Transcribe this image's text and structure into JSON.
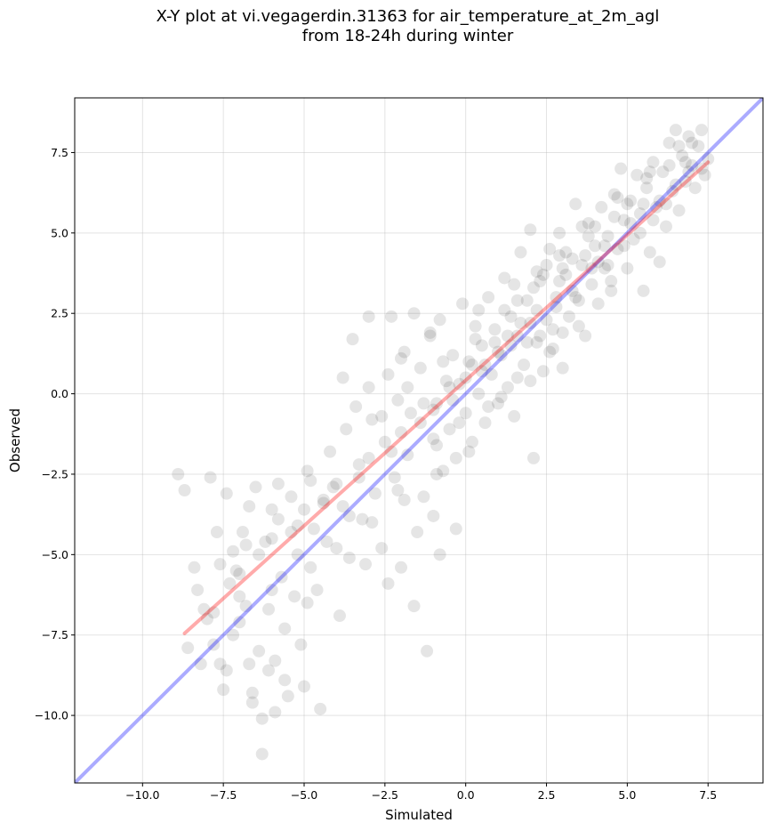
{
  "title_line1": "X-Y plot at vi.vegagerdin.31363 for air_temperature_at_2m_agl",
  "title_line2": "from 18-24h during winter",
  "chart_data": {
    "type": "scatter",
    "title": "X-Y plot at vi.vegagerdin.31363 for air_temperature_at_2m_agl from 18-24h during winter",
    "xlabel": "Simulated",
    "ylabel": "Observed",
    "xlim": [
      -12.1,
      9.2
    ],
    "ylim": [
      -12.1,
      9.2
    ],
    "xticks": [
      -10.0,
      -7.5,
      -5.0,
      -2.5,
      0.0,
      2.5,
      5.0,
      7.5
    ],
    "yticks": [
      -10.0,
      -7.5,
      -5.0,
      -2.5,
      0.0,
      2.5,
      5.0,
      7.5
    ],
    "xtick_labels": [
      "−10.0",
      "−7.5",
      "−5.0",
      "−2.5",
      "0.0",
      "2.5",
      "5.0",
      "7.5"
    ],
    "ytick_labels": [
      "−10.0",
      "−7.5",
      "−5.0",
      "−2.5",
      "0.0",
      "2.5",
      "5.0",
      "7.5"
    ],
    "grid": true,
    "point_color": "#000000",
    "point_alpha": 0.1,
    "points": [
      [
        -8.9,
        -2.5
      ],
      [
        -8.7,
        -3.0
      ],
      [
        -8.4,
        -5.4
      ],
      [
        -8.3,
        -6.1
      ],
      [
        -8.0,
        -7.0
      ],
      [
        -7.8,
        -6.8
      ],
      [
        -7.9,
        -2.6
      ],
      [
        -7.7,
        -4.3
      ],
      [
        -7.6,
        -8.4
      ],
      [
        -7.5,
        -9.2
      ],
      [
        -7.4,
        -3.1
      ],
      [
        -7.2,
        -4.9
      ],
      [
        -7.1,
        -5.5
      ],
      [
        -7.0,
        -7.1
      ],
      [
        -6.9,
        -4.3
      ],
      [
        -6.8,
        -6.6
      ],
      [
        -6.7,
        -3.5
      ],
      [
        -6.6,
        -9.6
      ],
      [
        -6.5,
        -2.9
      ],
      [
        -6.4,
        -8.0
      ],
      [
        -6.3,
        -10.1
      ],
      [
        -6.3,
        -11.2
      ],
      [
        -6.2,
        -4.6
      ],
      [
        -6.1,
        -6.7
      ],
      [
        -6.0,
        -3.6
      ],
      [
        -5.9,
        -8.3
      ],
      [
        -5.8,
        -2.8
      ],
      [
        -5.7,
        -5.7
      ],
      [
        -5.6,
        -7.3
      ],
      [
        -5.5,
        -9.4
      ],
      [
        -5.4,
        -3.2
      ],
      [
        -5.3,
        -6.3
      ],
      [
        -5.2,
        -4.1
      ],
      [
        -5.1,
        -7.8
      ],
      [
        -5.0,
        -9.1
      ],
      [
        -4.9,
        -2.4
      ],
      [
        -4.8,
        -5.4
      ],
      [
        -4.7,
        -4.2
      ],
      [
        -4.6,
        -6.1
      ],
      [
        -4.5,
        -9.8
      ],
      [
        -4.4,
        -3.3
      ],
      [
        -4.2,
        -1.8
      ],
      [
        -4.1,
        -2.9
      ],
      [
        -4.0,
        -4.8
      ],
      [
        -3.9,
        -6.9
      ],
      [
        -3.8,
        0.5
      ],
      [
        -3.7,
        -1.1
      ],
      [
        -3.6,
        -3.8
      ],
      [
        -3.5,
        1.7
      ],
      [
        -3.4,
        -0.4
      ],
      [
        -3.3,
        -2.2
      ],
      [
        -3.1,
        -5.3
      ],
      [
        -3.0,
        2.4
      ],
      [
        -2.9,
        -0.8
      ],
      [
        -2.8,
        -3.1
      ],
      [
        -2.6,
        -4.8
      ],
      [
        -2.5,
        -1.5
      ],
      [
        -2.4,
        0.6
      ],
      [
        -2.3,
        2.4
      ],
      [
        -2.2,
        -2.6
      ],
      [
        -2.1,
        -0.2
      ],
      [
        -2.0,
        -5.4
      ],
      [
        -1.9,
        1.3
      ],
      [
        -1.8,
        -1.9
      ],
      [
        -1.7,
        -0.6
      ],
      [
        -1.6,
        2.5
      ],
      [
        -1.5,
        -4.3
      ],
      [
        -1.4,
        0.8
      ],
      [
        -1.3,
        -3.2
      ],
      [
        -1.2,
        -8.0
      ],
      [
        -1.1,
        1.9
      ],
      [
        -1.0,
        -1.4
      ],
      [
        -0.9,
        -0.3
      ],
      [
        -0.8,
        2.3
      ],
      [
        -0.7,
        -2.4
      ],
      [
        -0.6,
        0.4
      ],
      [
        -0.5,
        -1.1
      ],
      [
        -0.4,
        1.2
      ],
      [
        -0.3,
        -2.0
      ],
      [
        -0.2,
        0.3
      ],
      [
        -0.1,
        2.8
      ],
      [
        0.0,
        -0.6
      ],
      [
        0.1,
        1.0
      ],
      [
        0.2,
        -1.5
      ],
      [
        0.3,
        2.1
      ],
      [
        0.4,
        0.0
      ],
      [
        0.5,
        1.5
      ],
      [
        0.6,
        -0.9
      ],
      [
        0.7,
        3.0
      ],
      [
        0.8,
        0.6
      ],
      [
        0.9,
        2.0
      ],
      [
        1.0,
        -0.3
      ],
      [
        1.1,
        1.2
      ],
      [
        1.2,
        3.6
      ],
      [
        1.3,
        0.2
      ],
      [
        1.4,
        2.4
      ],
      [
        1.5,
        -0.7
      ],
      [
        1.6,
        1.8
      ],
      [
        1.7,
        4.4
      ],
      [
        1.8,
        0.9
      ],
      [
        1.9,
        2.9
      ],
      [
        2.0,
        5.1
      ],
      [
        2.1,
        -2.0
      ],
      [
        2.2,
        1.6
      ],
      [
        2.3,
        3.5
      ],
      [
        2.4,
        0.7
      ],
      [
        2.5,
        2.3
      ],
      [
        2.6,
        4.5
      ],
      [
        2.7,
        1.4
      ],
      [
        2.8,
        3.0
      ],
      [
        2.9,
        5.0
      ],
      [
        3.0,
        1.9
      ],
      [
        3.1,
        3.7
      ],
      [
        3.2,
        2.4
      ],
      [
        3.3,
        4.2
      ],
      [
        3.4,
        5.9
      ],
      [
        3.5,
        2.9
      ],
      [
        3.6,
        4.0
      ],
      [
        3.7,
        1.8
      ],
      [
        3.8,
        5.3
      ],
      [
        3.9,
        3.4
      ],
      [
        4.0,
        4.6
      ],
      [
        4.1,
        2.8
      ],
      [
        4.2,
        5.8
      ],
      [
        4.3,
        3.9
      ],
      [
        4.4,
        4.9
      ],
      [
        4.5,
        3.2
      ],
      [
        4.6,
        6.2
      ],
      [
        4.7,
        4.5
      ],
      [
        4.8,
        7.0
      ],
      [
        4.9,
        5.4
      ],
      [
        5.0,
        3.9
      ],
      [
        5.1,
        6.0
      ],
      [
        5.2,
        4.8
      ],
      [
        5.3,
        6.8
      ],
      [
        5.4,
        5.6
      ],
      [
        5.5,
        3.2
      ],
      [
        5.6,
        6.4
      ],
      [
        5.7,
        4.4
      ],
      [
        5.8,
        7.2
      ],
      [
        5.9,
        5.8
      ],
      [
        6.0,
        4.1
      ],
      [
        6.1,
        6.9
      ],
      [
        6.2,
        5.2
      ],
      [
        6.3,
        7.8
      ],
      [
        6.4,
        6.3
      ],
      [
        6.5,
        8.2
      ],
      [
        6.6,
        5.7
      ],
      [
        6.7,
        7.4
      ],
      [
        6.8,
        6.6
      ],
      [
        6.9,
        8.0
      ],
      [
        7.0,
        7.1
      ],
      [
        7.1,
        6.4
      ],
      [
        7.2,
        7.7
      ],
      [
        7.3,
        8.2
      ],
      [
        7.4,
        6.8
      ],
      [
        7.5,
        7.3
      ],
      [
        6.2,
        5.9
      ],
      [
        5.4,
        5.0
      ],
      [
        4.3,
        4.6
      ],
      [
        3.3,
        3.2
      ],
      [
        2.2,
        2.6
      ],
      [
        1.4,
        1.5
      ],
      [
        0.6,
        0.9
      ],
      [
        -0.4,
        -0.2
      ],
      [
        -1.4,
        -0.9
      ],
      [
        -2.3,
        -1.8
      ],
      [
        -3.3,
        -2.6
      ],
      [
        -4.4,
        -3.4
      ],
      [
        -5.4,
        -4.3
      ],
      [
        -6.4,
        -5.0
      ],
      [
        -7.3,
        -5.9
      ],
      [
        -8.1,
        -6.7
      ],
      [
        -2.6,
        -0.7
      ],
      [
        -1.8,
        0.2
      ],
      [
        -0.7,
        1.0
      ],
      [
        0.3,
        1.7
      ],
      [
        1.2,
        2.6
      ],
      [
        2.1,
        3.3
      ],
      [
        3.1,
        4.4
      ],
      [
        4.0,
        5.2
      ],
      [
        5.0,
        5.9
      ],
      [
        0.7,
        -0.4
      ],
      [
        1.6,
        0.5
      ],
      [
        2.6,
        1.3
      ],
      [
        3.5,
        2.1
      ],
      [
        4.5,
        3.5
      ],
      [
        -3.8,
        -3.5
      ],
      [
        -4.8,
        -2.7
      ],
      [
        -5.8,
        -3.9
      ],
      [
        -6.8,
        -4.7
      ],
      [
        -7.6,
        -5.3
      ],
      [
        -2.9,
        -4.0
      ],
      [
        -1.9,
        -3.3
      ],
      [
        -0.9,
        -2.5
      ],
      [
        0.1,
        -1.8
      ],
      [
        1.1,
        -0.1
      ],
      [
        2.0,
        0.4
      ],
      [
        3.0,
        0.8
      ],
      [
        -6.1,
        -8.6
      ],
      [
        -5.6,
        -8.9
      ],
      [
        -6.7,
        -8.4
      ],
      [
        -7.2,
        -7.5
      ],
      [
        -4.9,
        -6.5
      ],
      [
        -3.6,
        -5.1
      ],
      [
        -2.4,
        -5.9
      ],
      [
        -1.6,
        -6.6
      ],
      [
        -0.8,
        -5.0
      ],
      [
        -0.3,
        -4.2
      ],
      [
        -1.0,
        -3.8
      ],
      [
        -2.1,
        -3.0
      ],
      [
        -3.2,
        -3.9
      ],
      [
        -4.3,
        -4.6
      ],
      [
        -5.2,
        -5.0
      ],
      [
        -6.0,
        -6.1
      ],
      [
        -7.0,
        -6.3
      ],
      [
        -7.8,
        -7.8
      ],
      [
        -8.2,
        -8.4
      ],
      [
        -7.4,
        -8.6
      ],
      [
        -6.6,
        -9.3
      ],
      [
        -5.9,
        -9.9
      ],
      [
        -8.6,
        -7.9
      ],
      [
        -3.0,
        0.2
      ],
      [
        -2.0,
        1.1
      ],
      [
        -1.1,
        1.8
      ],
      [
        0.4,
        2.6
      ],
      [
        1.5,
        3.4
      ],
      [
        2.5,
        4.0
      ],
      [
        3.6,
        5.2
      ],
      [
        4.7,
        6.1
      ],
      [
        5.7,
        6.9
      ],
      [
        6.6,
        7.7
      ],
      [
        7.3,
        7.0
      ],
      [
        6.9,
        6.9
      ],
      [
        5.8,
        5.4
      ],
      [
        4.9,
        4.6
      ],
      [
        3.9,
        3.9
      ],
      [
        2.9,
        3.5
      ],
      [
        2.0,
        2.2
      ],
      [
        1.0,
        1.3
      ],
      [
        0.0,
        0.5
      ],
      [
        -1.0,
        -0.5
      ],
      [
        -2.0,
        -1.2
      ],
      [
        -3.0,
        -2.0
      ],
      [
        -4.0,
        -2.8
      ],
      [
        -5.0,
        -3.6
      ],
      [
        -6.0,
        -4.5
      ],
      [
        -7.0,
        -5.6
      ],
      [
        2.4,
        3.7
      ],
      [
        2.7,
        2.0
      ],
      [
        1.9,
        1.6
      ],
      [
        1.7,
        2.2
      ],
      [
        2.3,
        1.8
      ],
      [
        1.6,
        2.9
      ],
      [
        2.8,
        2.7
      ],
      [
        3.4,
        3.0
      ],
      [
        1.3,
        1.8
      ],
      [
        0.9,
        1.6
      ],
      [
        0.5,
        0.7
      ],
      [
        0.2,
        0.9
      ],
      [
        -0.2,
        -0.9
      ],
      [
        -0.5,
        0.2
      ],
      [
        -0.9,
        -1.6
      ],
      [
        -1.3,
        -0.3
      ],
      [
        4.1,
        4.1
      ],
      [
        4.4,
        4.0
      ],
      [
        3.7,
        4.3
      ],
      [
        3.0,
        3.9
      ],
      [
        5.1,
        5.3
      ],
      [
        5.5,
        5.9
      ],
      [
        6.0,
        6.0
      ],
      [
        6.5,
        6.5
      ],
      [
        6.8,
        7.2
      ],
      [
        7.0,
        7.8
      ],
      [
        6.3,
        7.1
      ],
      [
        5.6,
        6.7
      ],
      [
        4.6,
        5.5
      ],
      [
        3.8,
        4.9
      ],
      [
        2.9,
        4.3
      ],
      [
        2.2,
        3.8
      ]
    ],
    "lines": [
      {
        "color": "#0000ff",
        "alpha": 0.33,
        "x": [
          -12.1,
          9.2
        ],
        "y": [
          -12.1,
          9.2
        ]
      },
      {
        "color": "#ff0000",
        "alpha": 0.33,
        "x": [
          -8.7,
          7.5
        ],
        "y": [
          -7.45,
          7.2
        ]
      }
    ]
  }
}
